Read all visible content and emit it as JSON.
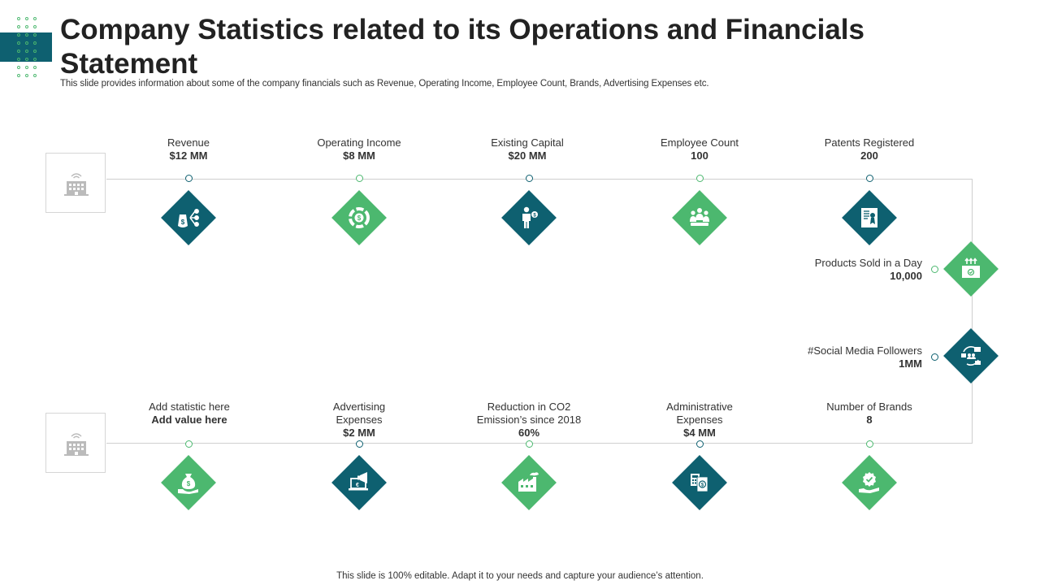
{
  "header": {
    "title": "Company Statistics related to its Operations and Financials Statement",
    "subtitle": "This slide provides information about some of the company financials such as Revenue, Operating Income, Employee Count, Brands, Advertising Expenses etc."
  },
  "top_row": [
    {
      "label": "Revenue",
      "value": "$12 MM",
      "icon": "money-bag-chart-icon",
      "color": "teal"
    },
    {
      "label": "Operating Income",
      "value": "$8 MM",
      "icon": "dollar-cycle-icon",
      "color": "green"
    },
    {
      "label": "Existing Capital",
      "value": "$20 MM",
      "icon": "businessman-dollar-icon",
      "color": "teal"
    },
    {
      "label": "Employee Count",
      "value": "100",
      "icon": "team-group-icon",
      "color": "green"
    },
    {
      "label": "Patents Registered",
      "value": "200",
      "icon": "certificate-icon",
      "color": "teal"
    }
  ],
  "right_column": [
    {
      "label": "Products Sold in a Day",
      "value": "10,000",
      "icon": "product-box-icon",
      "color": "green"
    },
    {
      "label": "#Social Media Followers",
      "value": "1MM",
      "icon": "social-media-icon",
      "color": "teal"
    }
  ],
  "bottom_row": [
    {
      "label": "Add statistic here",
      "value": "Add value here",
      "icon": "money-hand-icon",
      "color": "green"
    },
    {
      "label": "Advertising Expenses",
      "value": "$2 MM",
      "icon": "megaphone-laptop-icon",
      "color": "teal"
    },
    {
      "label": "Reduction in CO2 Emission’s since 2018",
      "value": "60%",
      "icon": "factory-icon",
      "color": "green"
    },
    {
      "label": "Administrative Expenses",
      "value": "$4 MM",
      "icon": "calculator-bill-icon",
      "color": "teal"
    },
    {
      "label": "Number of Brands",
      "value": "8",
      "icon": "brand-hand-icon",
      "color": "green"
    }
  ],
  "colors": {
    "teal": "#0e6070",
    "green": "#4cb86f",
    "line": "#cfcfcf"
  },
  "footer": "This slide is 100% editable. Adapt it to your needs and capture your audience’s attention."
}
